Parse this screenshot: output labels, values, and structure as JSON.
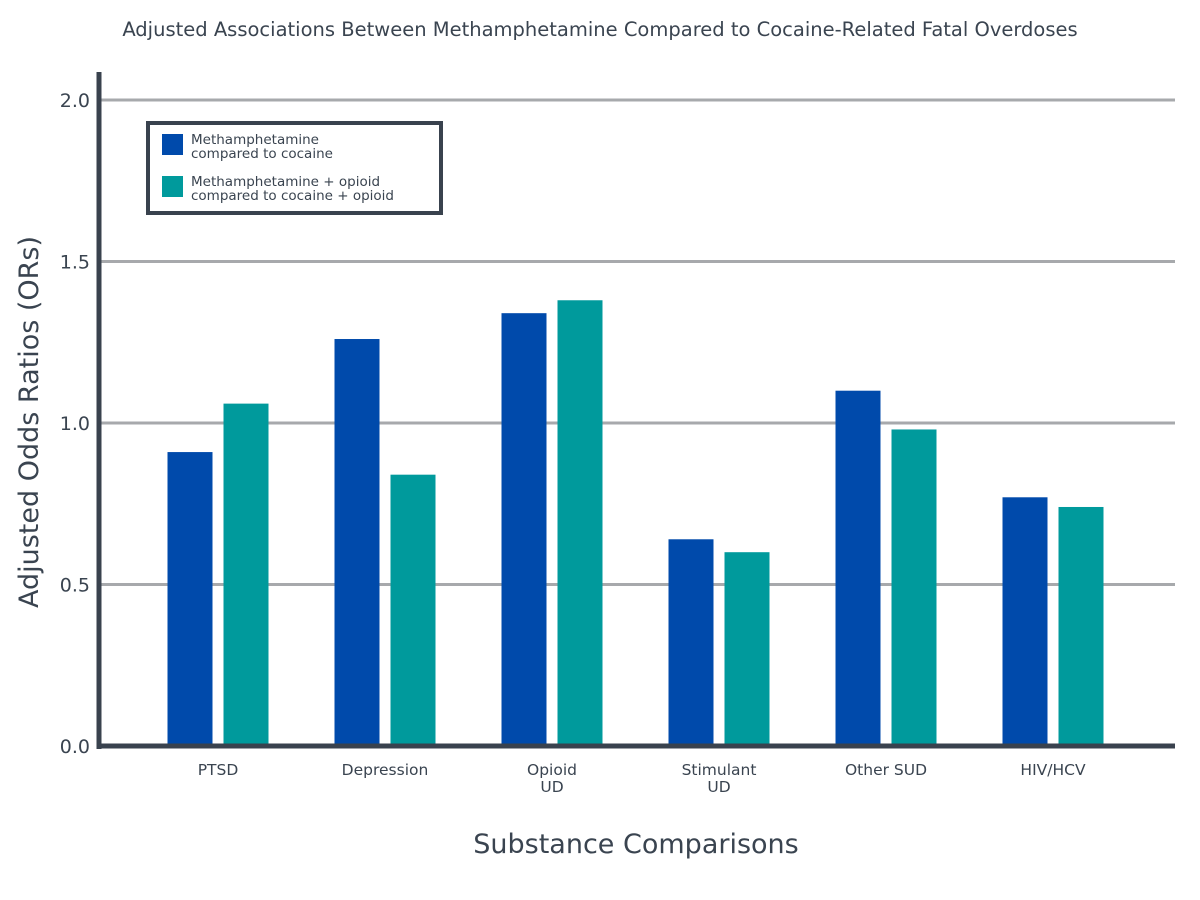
{
  "chart_data": {
    "type": "bar",
    "title": "Adjusted Associations Between Methamphetamine Compared to Cocaine-Related Fatal Overdoses",
    "xlabel": "Substance Comparisons",
    "ylabel": "Adjusted Odds Ratios (ORs)",
    "ylim": [
      0,
      2.0
    ],
    "yticks": [
      "0.0",
      "0.5",
      "1.0",
      "1.5",
      "2.0"
    ],
    "grid": true,
    "legend_position": "top-left",
    "categories": [
      [
        "PTSD"
      ],
      [
        "Depression"
      ],
      [
        "Opioid",
        "UD"
      ],
      [
        "Stimulant",
        "UD"
      ],
      [
        "Other SUD"
      ],
      [
        "HIV/HCV"
      ]
    ],
    "series": [
      {
        "name": [
          "Methamphetamine",
          "compared to cocaine"
        ],
        "color": "#004aab",
        "values": [
          0.91,
          1.26,
          1.34,
          0.64,
          1.1,
          0.77
        ]
      },
      {
        "name": [
          "Methamphetamine + opioid",
          "compared to cocaine + opioid"
        ],
        "color": "#009a9c",
        "values": [
          1.06,
          0.84,
          1.38,
          0.6,
          0.98,
          0.74
        ]
      }
    ],
    "colors": {
      "axis": "#39424e",
      "grid": "#a7a9ac",
      "text": "#3a4450"
    }
  }
}
